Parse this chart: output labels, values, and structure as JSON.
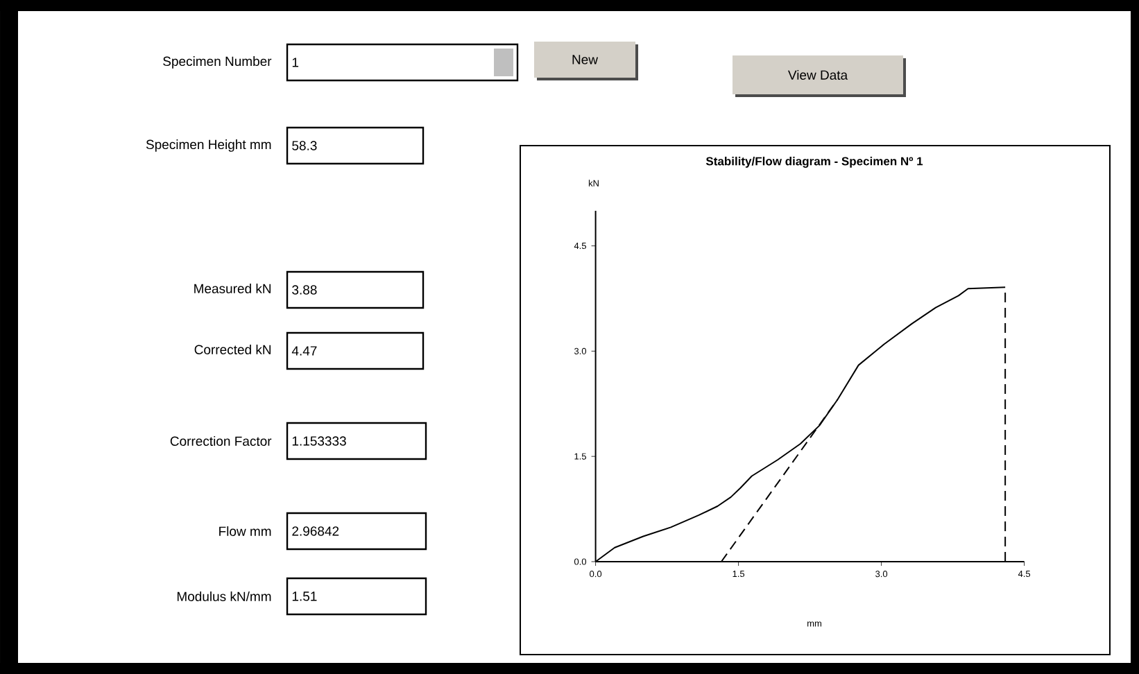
{
  "chart_data": [
    {
      "type": "other",
      "annotations": [
        "Specimen Number",
        "1",
        "New",
        "View Data",
        "Specimen Height mm",
        "58.3",
        "Measured kN",
        "3.88",
        "Corrected kN",
        "4.47",
        "Correction Factor",
        "1.153333",
        "Flow mm",
        "2.96842",
        "Modulus kN/mm",
        "1.51"
      ]
    },
    {
      "type": "line",
      "title": "Stability/Flow diagram - Specimen Nº 1",
      "xlabel": "mm",
      "ylabel": "kN",
      "xlim": [
        0,
        4.5
      ],
      "ylim": [
        0,
        5.0
      ],
      "xticks": [
        {
          "value": 0,
          "label": "0.0"
        },
        {
          "value": 1.5,
          "label": "1.5"
        },
        {
          "value": 3,
          "label": "3.0"
        },
        {
          "value": 4.5,
          "label": "4.5"
        }
      ],
      "yticks": [
        {
          "value": 0,
          "label": "0.0"
        },
        {
          "value": 1.5,
          "label": "1.5"
        },
        {
          "value": 3,
          "label": "3.0"
        },
        {
          "value": 4.5,
          "label": "4.5"
        }
      ],
      "grid": false,
      "series": [
        {
          "color": "#000000",
          "line_style": "solid",
          "x": [
            0,
            0.2,
            0.5,
            0.79,
            1.08,
            1.28,
            1.42,
            1.52,
            1.64,
            1.91,
            2.15,
            2.35,
            2.54,
            2.76,
            3.03,
            3.32,
            3.57,
            3.81,
            3.91,
            4.3
          ],
          "values": [
            0,
            0.2,
            0.36,
            0.49,
            0.66,
            0.79,
            0.92,
            1.05,
            1.22,
            1.45,
            1.68,
            1.94,
            2.31,
            2.8,
            3.1,
            3.39,
            3.62,
            3.79,
            3.89,
            3.91
          ]
        },
        {
          "color": "#000000",
          "line_style": "dashed",
          "x": [
            1.32,
            2.54
          ],
          "values": [
            0,
            2.31
          ]
        },
        {
          "color": "#000000",
          "line_style": "dashed",
          "x": [
            4.3,
            4.3
          ],
          "values": [
            0,
            3.91
          ]
        }
      ]
    }
  ]
}
